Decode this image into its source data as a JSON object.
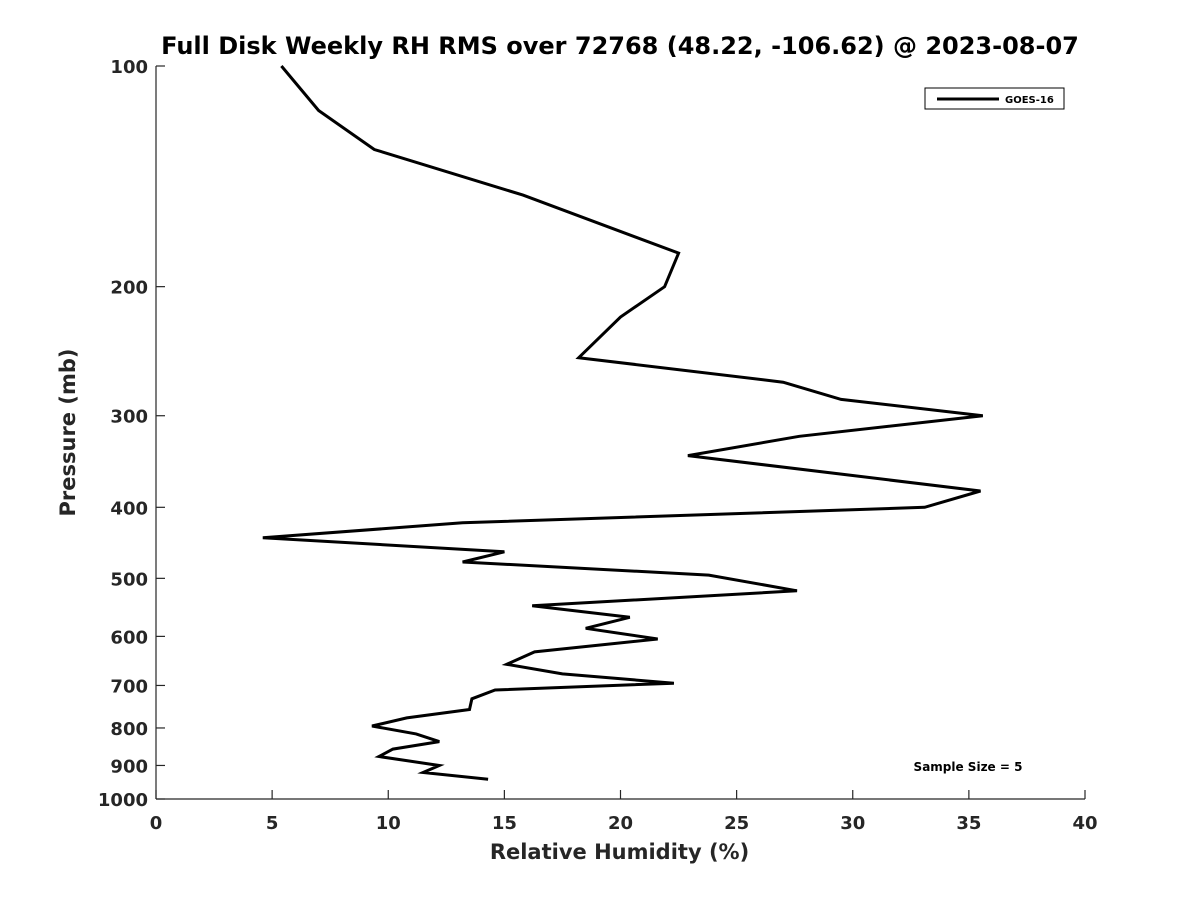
{
  "chart_data": {
    "type": "line",
    "title": "Full Disk Weekly RH RMS over 72768 (48.22, -106.62) @ 2023-08-07",
    "xlabel": "Relative Humidity (%)",
    "ylabel": "Pressure (mb)",
    "xlim": [
      0,
      40
    ],
    "ylim": [
      100,
      1000
    ],
    "y_scale": "log",
    "y_reversed": true,
    "x_ticks": [
      0,
      5,
      10,
      15,
      20,
      25,
      30,
      35,
      40
    ],
    "y_ticks": [
      100,
      200,
      300,
      400,
      500,
      600,
      700,
      800,
      900,
      1000
    ],
    "grid": false,
    "legend": {
      "position": "top-right",
      "entries": [
        "GOES-16"
      ]
    },
    "annotation": "Sample Size = 5",
    "series": [
      {
        "name": "GOES-16",
        "color": "#000000",
        "x": [
          5.4,
          7.0,
          9.4,
          15.8,
          22.5,
          21.9,
          20.0,
          18.2,
          27.0,
          29.5,
          35.6,
          27.7,
          22.9,
          35.5,
          33.1,
          13.2,
          4.6,
          15.0,
          13.2,
          23.8,
          27.6,
          16.2,
          20.4,
          18.5,
          21.6,
          16.3,
          15.1,
          17.5,
          22.3,
          14.6,
          13.6,
          13.5,
          10.8,
          9.3,
          11.2,
          12.2,
          10.2,
          9.6,
          12.2,
          11.5,
          14.3
        ],
        "y": [
          100,
          115,
          130,
          150,
          180,
          200,
          220,
          250,
          270,
          285,
          300,
          320,
          340,
          380,
          400,
          420,
          440,
          460,
          475,
          495,
          520,
          545,
          565,
          585,
          605,
          630,
          655,
          675,
          695,
          710,
          730,
          755,
          775,
          795,
          815,
          835,
          855,
          875,
          900,
          920,
          940
        ]
      }
    ]
  }
}
